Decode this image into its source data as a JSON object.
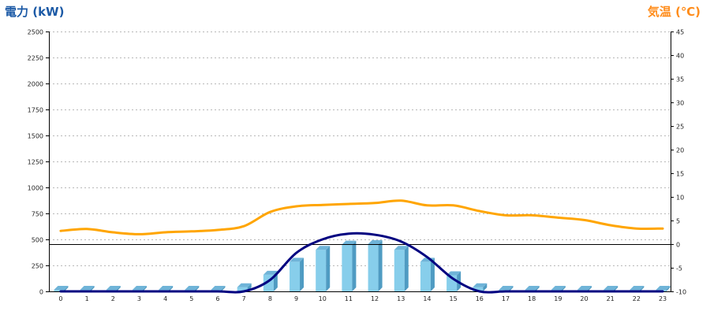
{
  "chart_data": {
    "type": "bar",
    "y_left_label": "電力 (kW)",
    "y_right_label": "気温 (℃)",
    "y_left_ticks": [
      0,
      250,
      500,
      750,
      1000,
      1250,
      1500,
      1750,
      2000,
      2250,
      2500
    ],
    "y_right_ticks": [
      -10,
      -5,
      0,
      5,
      10,
      15,
      20,
      25,
      30,
      35,
      40,
      45
    ],
    "y_left_range": [
      0,
      2500
    ],
    "y_right_range": [
      -10,
      45
    ],
    "categories": [
      "0",
      "1",
      "2",
      "3",
      "4",
      "5",
      "6",
      "7",
      "8",
      "9",
      "10",
      "11",
      "12",
      "13",
      "14",
      "15",
      "16",
      "17",
      "18",
      "19",
      "20",
      "21",
      "22",
      "23"
    ],
    "grid": true,
    "legend": "none",
    "series": [
      {
        "type": "bar",
        "axis": "left",
        "color": "#87ceeb",
        "values": [
          15,
          15,
          15,
          15,
          15,
          15,
          15,
          40,
          160,
          285,
          400,
          450,
          455,
          400,
          285,
          155,
          40,
          15,
          15,
          15,
          15,
          15,
          15,
          15
        ]
      },
      {
        "type": "line",
        "axis": "left",
        "color": "#000080",
        "values": [
          0,
          0,
          0,
          0,
          0,
          0,
          0,
          0,
          110,
          370,
          500,
          555,
          545,
          480,
          330,
          120,
          0,
          0,
          0,
          0,
          0,
          0,
          0,
          0
        ]
      },
      {
        "type": "line",
        "axis": "right",
        "color": "#ffa500",
        "values": [
          2.8,
          3.2,
          2.5,
          2.1,
          2.5,
          2.7,
          3.0,
          3.8,
          6.8,
          8.0,
          8.3,
          8.5,
          8.7,
          9.2,
          8.2,
          8.2,
          7.0,
          6.1,
          6.1,
          5.6,
          5.1,
          4.0,
          3.3,
          3.3
        ]
      }
    ]
  }
}
